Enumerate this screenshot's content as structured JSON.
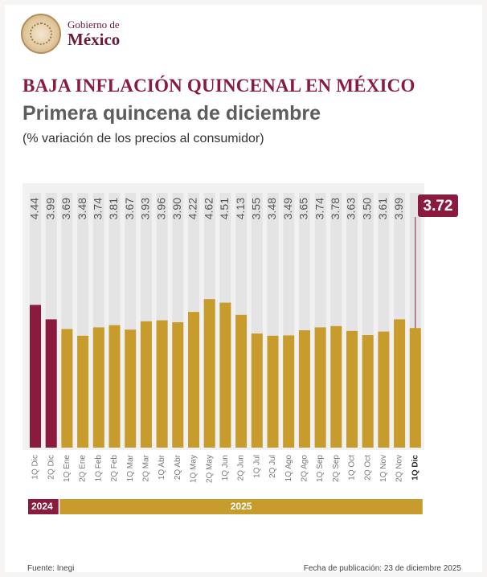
{
  "brand": {
    "line1": "Gobierno de",
    "line2": "México"
  },
  "header": {
    "title": "BAJA INFLACIÓN QUINCENAL EN MÉXICO",
    "subtitle": "Primera quincena de diciembre",
    "note": "(% variación de los precios al consumidor)"
  },
  "colors": {
    "highlight": "#8a1a3e",
    "main": "#c79b2c",
    "track": "#e4e4e4"
  },
  "chart_data": {
    "type": "bar",
    "title": "BAJA INFLACIÓN QUINCENAL EN MÉXICO",
    "subtitle": "Primera quincena de diciembre",
    "ylabel": "(% variación de los precios al consumidor)",
    "ylim": [
      0,
      5.5
    ],
    "grid": false,
    "categories": [
      "1Q Dic",
      "2Q Dic",
      "1Q Ene",
      "2Q Ene",
      "1Q Feb",
      "2Q Feb",
      "1Q Mar",
      "2Q Mar",
      "1Q Abr",
      "2Q Abr",
      "1Q May",
      "2Q May",
      "1Q Jun",
      "2Q Jun",
      "1Q Jul",
      "2Q Jul",
      "1Q Ago",
      "2Q Ago",
      "1Q Sep",
      "2Q Sep",
      "1Q Oct",
      "2Q Oct",
      "1Q Nov",
      "2Q Nov",
      "1Q Dic"
    ],
    "values": [
      4.44,
      3.99,
      3.69,
      3.48,
      3.74,
      3.81,
      3.67,
      3.93,
      3.96,
      3.9,
      4.22,
      4.62,
      4.51,
      4.13,
      3.55,
      3.48,
      3.49,
      3.65,
      3.74,
      3.78,
      3.63,
      3.5,
      3.61,
      3.99,
      3.72
    ],
    "value_labels": [
      "4.44",
      "3.99",
      "3.69",
      "3.48",
      "3.74",
      "3.81",
      "3.67",
      "3.93",
      "3.96",
      "3.90",
      "4.22",
      "4.62",
      "4.51",
      "4.13",
      "3.55",
      "3.48",
      "3.49",
      "3.65",
      "3.74",
      "3.78",
      "3.63",
      "3.50",
      "3.61",
      "3.99",
      "3.72"
    ],
    "year_groups": [
      {
        "label": "2024",
        "count": 2
      },
      {
        "label": "2025",
        "count": 23
      }
    ],
    "highlighted_value": "3.72"
  },
  "footer": {
    "source": "Fuente: Inegi",
    "date": "Fecha de publicación: 23 de diciembre 2025"
  }
}
